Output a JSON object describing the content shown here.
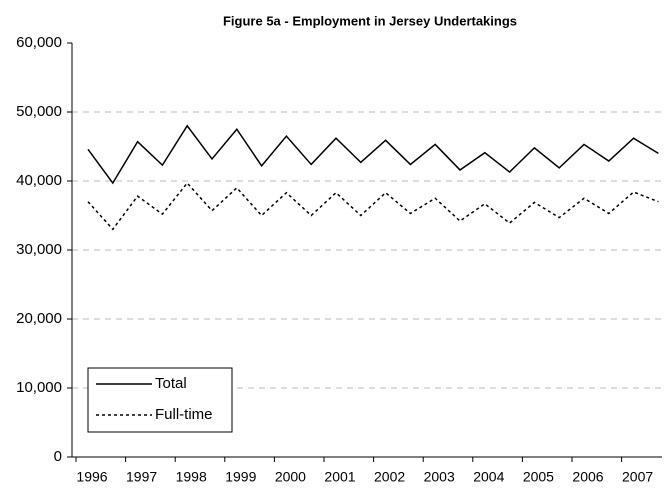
{
  "chart_data": {
    "type": "line",
    "title": "Figure 5a - Employment in Jersey Undertakings",
    "categories": [
      "1996",
      null,
      "1997",
      null,
      "1998",
      null,
      "1999",
      null,
      "2000",
      null,
      "2001",
      null,
      "2002",
      null,
      "2003",
      null,
      "2004",
      null,
      "2005",
      null,
      "2006",
      null,
      "2007",
      null
    ],
    "series": [
      {
        "name": "Total",
        "color": "#000000",
        "style": "solid",
        "values": [
          44600,
          39700,
          45700,
          42300,
          48000,
          43200,
          47500,
          42200,
          46500,
          42400,
          46200,
          42700,
          45900,
          42400,
          45300,
          41600,
          44100,
          41300,
          44800,
          41900,
          45300,
          42900,
          46200,
          44000
        ]
      },
      {
        "name": "Full-time",
        "color": "#000000",
        "style": "dotted",
        "values": [
          37000,
          33000,
          37800,
          35200,
          39700,
          35700,
          39000,
          35000,
          38300,
          35000,
          38300,
          35000,
          38300,
          35300,
          37500,
          34200,
          36700,
          33900,
          36900,
          34700,
          37500,
          35300,
          38400,
          37000
        ]
      }
    ],
    "ylim": [
      0,
      60000
    ],
    "yticks": [
      0,
      {
        "value": 10000,
        "label": "10,000"
      },
      {
        "value": 20000,
        "label": "20,000"
      },
      {
        "value": 30000,
        "label": "30,000"
      },
      {
        "value": 40000,
        "label": "40,000"
      },
      {
        "value": 50000,
        "label": "50,000"
      },
      {
        "value": 60000,
        "label": "60,000"
      }
    ],
    "grid": true,
    "legend": "lower left"
  }
}
